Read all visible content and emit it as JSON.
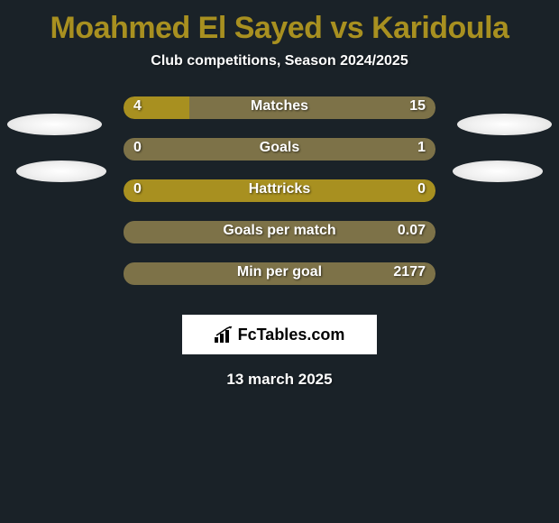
{
  "background_color": "#1a2228",
  "title": {
    "text": "Moahmed El Sayed vs Karidoula",
    "color": "#a89020",
    "fontsize": 34
  },
  "subtitle": {
    "text": "Club competitions, Season 2024/2025",
    "color": "#ffffff",
    "fontsize": 16
  },
  "colors": {
    "player1_bar": "#a89020",
    "player2_bar": "#7d7248",
    "neutral_bar": "#a89020",
    "text": "#ffffff"
  },
  "stats": [
    {
      "label": "Matches",
      "left_value": "4",
      "right_value": "15",
      "left_pct": 21,
      "right_pct": 79,
      "show_left": true
    },
    {
      "label": "Goals",
      "left_value": "0",
      "right_value": "1",
      "left_pct": 0,
      "right_pct": 100,
      "show_left": true
    },
    {
      "label": "Hattricks",
      "left_value": "0",
      "right_value": "0",
      "left_pct": 100,
      "right_pct": 0,
      "show_left": true,
      "neutral": true
    },
    {
      "label": "Goals per match",
      "left_value": "",
      "right_value": "0.07",
      "left_pct": 0,
      "right_pct": 100,
      "show_left": false
    },
    {
      "label": "Min per goal",
      "left_value": "",
      "right_value": "2177",
      "left_pct": 0,
      "right_pct": 100,
      "show_left": false
    }
  ],
  "footer": {
    "brand": "FcTables.com",
    "date": "13 march 2025"
  }
}
